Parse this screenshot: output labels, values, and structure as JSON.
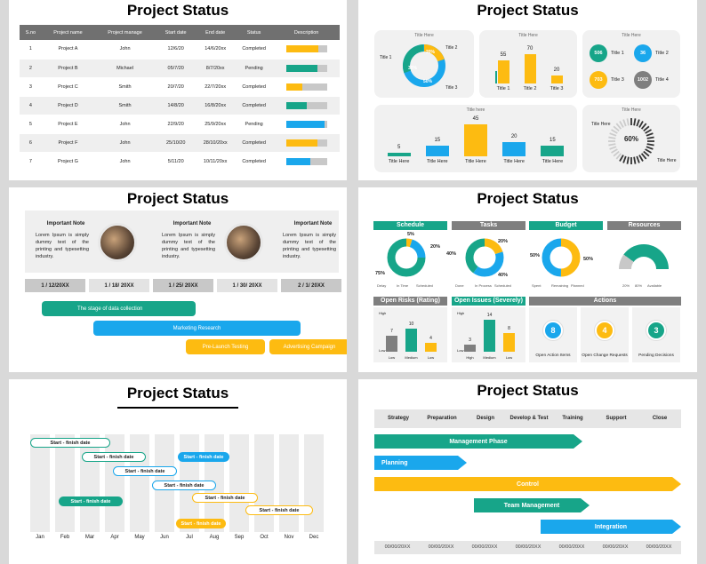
{
  "colors": {
    "teal": "#17a589",
    "blue": "#1aa7ec",
    "yellow": "#fdbb11",
    "gray": "#7f7f7f",
    "lightgray": "#c8c8c8"
  },
  "s1": {
    "title": "Project Status",
    "headers": [
      "S.no",
      "Project name",
      "Project manage",
      "Start date",
      "End date",
      "Status",
      "Description"
    ],
    "rows": [
      {
        "no": "1",
        "name": "Project A",
        "mgr": "John",
        "start": "12/6/20",
        "end": "14/6/20xx",
        "status": "Completed",
        "pct": 0.8,
        "color": "#fdbb11"
      },
      {
        "no": "2",
        "name": "Project B",
        "mgr": "Michael",
        "start": "05/7/20",
        "end": "8/7/20xx",
        "status": "Pending",
        "pct": 0.78,
        "color": "#17a589"
      },
      {
        "no": "3",
        "name": "Project C",
        "mgr": "Smith",
        "start": "20/7/20",
        "end": "22/7/20xx",
        "status": "Completed",
        "pct": 0.4,
        "color": "#fdbb11"
      },
      {
        "no": "4",
        "name": "Project D",
        "mgr": "Smith",
        "start": "14/8/20",
        "end": "16/8/20xx",
        "status": "Completed",
        "pct": 0.5,
        "color": "#17a589"
      },
      {
        "no": "5",
        "name": "Project E",
        "mgr": "John",
        "start": "22/9/20",
        "end": "25/9/20xx",
        "status": "Pending",
        "pct": 0.95,
        "color": "#1aa7ec"
      },
      {
        "no": "6",
        "name": "Project F",
        "mgr": "John",
        "start": "25/10/20",
        "end": "28/10/20xx",
        "status": "Completed",
        "pct": 0.78,
        "color": "#fdbb11"
      },
      {
        "no": "7",
        "name": "Project G",
        "mgr": "John",
        "start": "5/11/20",
        "end": "10/11/20xx",
        "status": "Completed",
        "pct": 0.6,
        "color": "#1aa7ec"
      }
    ]
  },
  "s2": {
    "title": "Project Status",
    "donut": {
      "title": "Title Here",
      "t1": "Title 1",
      "t2": "Title 2",
      "t3": "Title 3",
      "v1": "30%",
      "v2": "20%",
      "v3": "50%"
    },
    "bars3": {
      "title": "Title Here",
      "values": [
        55,
        70,
        20
      ],
      "labels": [
        "Title 1",
        "Title 2",
        "Title 3"
      ]
    },
    "circles": {
      "title": "Title Here",
      "items": [
        {
          "v": "506",
          "l": "Title 1"
        },
        {
          "v": "36",
          "l": "Title 2"
        },
        {
          "v": "703",
          "l": "Title 3"
        },
        {
          "v": "1002",
          "l": "Title 4"
        }
      ]
    },
    "bars5": {
      "title": "Title here",
      "values": [
        5,
        15,
        45,
        20,
        15
      ],
      "labels": [
        "Title Here",
        "Title Here",
        "Title Here",
        "Title Here",
        "Title Here"
      ]
    },
    "gauge": {
      "title": "Title Here",
      "pct": "60%",
      "l1": "Title Here",
      "l2": "Title Here"
    }
  },
  "s3": {
    "title": "Project Status",
    "notes": [
      {
        "h": "Important Note",
        "b": "Lorem Ipsum is simply dummy text of the printing and typesetting industry."
      },
      {
        "h": "Important Note",
        "b": "Lorem Ipsum is simply dummy text of the printing and typesetting industry."
      },
      {
        "h": "Important Note",
        "b": "Lorem Ipsum is simply dummy text of the printing and typesetting industry."
      }
    ],
    "dates": [
      "1 / 12/20XX",
      "1 / 18/ 20XX",
      "1 / 25/ 20XX",
      "1 / 30/ 20XX",
      "2 / 1/ 20XX"
    ],
    "bars": [
      "The stage of data collection",
      "Marketing Research",
      "Pre-Launch Testing",
      "Advertising Campaign"
    ]
  },
  "s4": {
    "title": "Project Status",
    "heads": [
      "Schedule",
      "Tasks",
      "Budget",
      "Resources"
    ],
    "schedule": {
      "a": "5%",
      "b": "20%",
      "c": "75%",
      "legend": [
        "Delay",
        "In Time",
        "Scheduled"
      ]
    },
    "tasks": {
      "a": "20%",
      "b": "40%",
      "c": "40%",
      "legend": [
        "Done",
        "In Process",
        "Scheduled"
      ]
    },
    "budget": {
      "a": "50%",
      "b": "50%",
      "legend": [
        "Spent",
        "Remaining",
        "Planned"
      ]
    },
    "resources": {
      "legend": [
        "20%",
        "80%",
        "Available"
      ]
    },
    "risks": {
      "h": "Open Risks (Rating)",
      "axis": [
        "High",
        "Low"
      ],
      "x": [
        "Low",
        "Medium",
        "Low"
      ],
      "values": [
        7,
        10,
        4
      ]
    },
    "issues": {
      "h": "Open Issues (Severely)",
      "axis": [
        "High",
        "Low"
      ],
      "x": [
        "High",
        "Medium",
        "Low"
      ],
      "values": [
        3,
        14,
        8
      ]
    },
    "actions": {
      "h": "Actions",
      "items": [
        {
          "v": "8",
          "l": "Open Action Items"
        },
        {
          "v": "4",
          "l": "Open Change Requests"
        },
        {
          "v": "3",
          "l": "Pending Decisions"
        }
      ]
    }
  },
  "s5": {
    "title": "Project Status",
    "pill": "Start - finish date",
    "months": [
      "Jan",
      "Feb",
      "Mar",
      "Apr",
      "May",
      "Jun",
      "Jul",
      "Aug",
      "Sep",
      "Oct",
      "Nov",
      "Dec"
    ]
  },
  "s6": {
    "title": "Project Status",
    "cols": [
      "Strategy",
      "Preparation",
      "Design",
      "Develop & Test",
      "Training",
      "Support",
      "Close"
    ],
    "bars": [
      "Management Phase",
      "Planning",
      "Control",
      "Team Management",
      "Integration"
    ],
    "dates": [
      "00/00/20XX",
      "00/00/20XX",
      "00/00/20XX",
      "00/00/20XX",
      "00/00/20XX",
      "00/00/20XX",
      "00/00/20XX"
    ]
  }
}
